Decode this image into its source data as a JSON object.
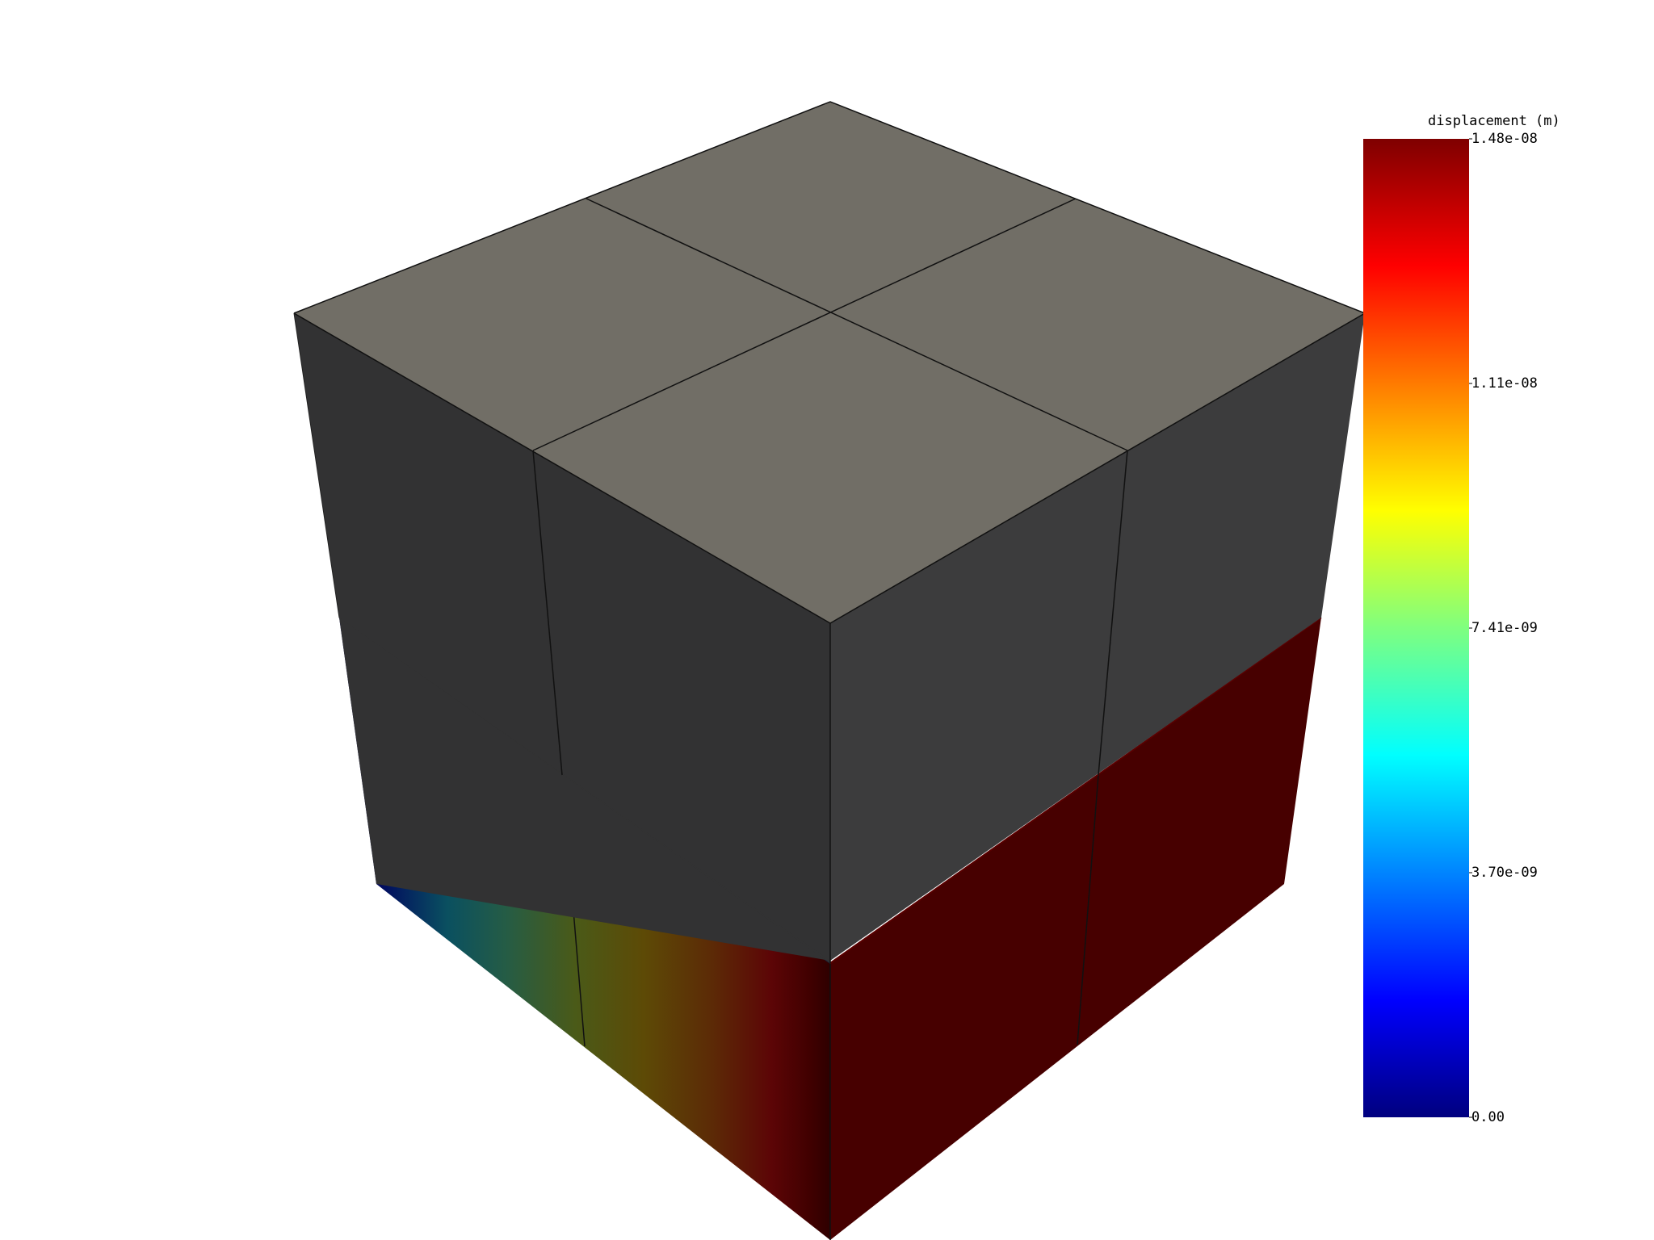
{
  "colorbar": {
    "title": "displacement (m)",
    "ticks": [
      "1.48e-08",
      "1.11e-08",
      "7.41e-09",
      "3.70e-09",
      "0.00"
    ],
    "colormap": "jet",
    "min": 0.0,
    "max": 1.48e-08
  },
  "colors": {
    "undeformed_top": "#716e66",
    "undeformed_left_side": "#323233",
    "undeformed_right_side": "#3c3c3d",
    "edges": "#111111"
  }
}
